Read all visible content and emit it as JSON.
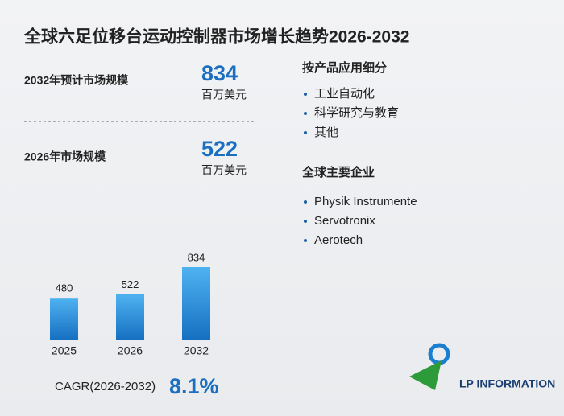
{
  "title": "全球六足位移台运动控制器市场增长趋势2026-2032",
  "stats": [
    {
      "label": "2032年预计市场规模",
      "value": 834,
      "unit": "百万美元"
    },
    {
      "label": "2026年市场规模",
      "value": 522,
      "unit": "百万美元"
    }
  ],
  "segments": {
    "title": "按产品应用细分",
    "items": [
      "工业自动化",
      "科学研究与教育",
      "其他"
    ]
  },
  "companies": {
    "title": "全球主要企业",
    "items": [
      "Physik Instrumente",
      "Servotronix",
      "Aerotech"
    ]
  },
  "chart_data": {
    "type": "bar",
    "categories": [
      "2025",
      "2026",
      "2032"
    ],
    "values": [
      480,
      522,
      834
    ],
    "color": "#2a8ad6"
  },
  "cagr": {
    "label": "CAGR(2026-2032)",
    "value": "8.1%"
  },
  "logo": "LP INFORMATION"
}
